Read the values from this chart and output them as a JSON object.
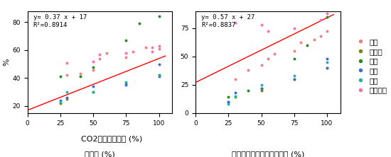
{
  "title1": "y= 0.37 x + 17\nR²=0.8914",
  "title2": "y= 0.57 x + 27\nR²=0.8837",
  "xlabel": "CO2排出量削減率 (%)",
  "ylabel1": "電化率 (%)",
  "ylabel2": "低炭素エネルギー源シェア (%)",
  "ylabel_shared": "%",
  "countries": [
    "中国",
    "インド",
    "日本",
    "韓国",
    "タイ",
    "ベトナム"
  ],
  "colors": [
    "#f08080",
    "#808000",
    "#228B22",
    "#4169e1",
    "#20b2aa",
    "#ff69b4"
  ],
  "plot1": {
    "中国": [
      [
        30,
        42
      ],
      [
        40,
        43
      ],
      [
        50,
        46
      ],
      [
        55,
        54
      ],
      [
        60,
        58
      ],
      [
        75,
        55
      ],
      [
        80,
        59
      ],
      [
        90,
        62
      ],
      [
        95,
        62
      ],
      [
        100,
        61
      ]
    ],
    "インド": [
      [
        25,
        22
      ],
      [
        30,
        25
      ],
      [
        50,
        30
      ],
      [
        75,
        36
      ],
      [
        100,
        42
      ]
    ],
    "日本": [
      [
        25,
        41
      ],
      [
        40,
        41
      ],
      [
        50,
        48
      ],
      [
        75,
        67
      ],
      [
        85,
        79
      ],
      [
        100,
        84
      ]
    ],
    "韓国": [
      [
        25,
        24
      ],
      [
        30,
        26
      ],
      [
        50,
        34
      ],
      [
        75,
        35
      ],
      [
        100,
        41
      ],
      [
        100,
        50
      ]
    ],
    "タイ": [
      [
        25,
        23
      ],
      [
        30,
        30
      ],
      [
        50,
        30
      ],
      [
        75,
        37
      ],
      [
        100,
        42
      ]
    ],
    "ベトナム": [
      [
        30,
        51
      ],
      [
        50,
        52
      ],
      [
        55,
        57
      ],
      [
        75,
        58
      ],
      [
        95,
        59
      ],
      [
        100,
        63
      ]
    ]
  },
  "plot2": {
    "中国": [
      [
        30,
        30
      ],
      [
        40,
        38
      ],
      [
        50,
        42
      ],
      [
        55,
        48
      ],
      [
        60,
        52
      ],
      [
        75,
        55
      ],
      [
        80,
        62
      ],
      [
        90,
        65
      ],
      [
        95,
        68
      ],
      [
        100,
        72
      ]
    ],
    "インド": [
      [
        25,
        10
      ],
      [
        30,
        14
      ],
      [
        50,
        20
      ],
      [
        75,
        30
      ],
      [
        100,
        40
      ]
    ],
    "日本": [
      [
        25,
        14
      ],
      [
        40,
        20
      ],
      [
        50,
        22
      ],
      [
        75,
        48
      ],
      [
        85,
        60
      ],
      [
        100,
        85
      ]
    ],
    "韓国": [
      [
        25,
        10
      ],
      [
        30,
        18
      ],
      [
        50,
        22
      ],
      [
        75,
        30
      ],
      [
        100,
        40
      ],
      [
        100,
        48
      ]
    ],
    "タイ": [
      [
        25,
        8
      ],
      [
        30,
        15
      ],
      [
        50,
        25
      ],
      [
        75,
        33
      ],
      [
        100,
        45
      ]
    ],
    "ベトナム": [
      [
        30,
        80
      ],
      [
        50,
        78
      ],
      [
        55,
        72
      ],
      [
        75,
        75
      ],
      [
        95,
        82
      ],
      [
        100,
        88
      ]
    ]
  },
  "line1": {
    "slope": 0.37,
    "intercept": 17
  },
  "line2": {
    "slope": 0.57,
    "intercept": 27
  },
  "xlim": [
    0,
    110
  ],
  "ylim1": [
    15,
    88
  ],
  "ylim2": [
    0,
    90
  ],
  "xticks": [
    0,
    25,
    50,
    75,
    100
  ],
  "yticks1": [
    20,
    40,
    60,
    80
  ],
  "yticks2": [
    0,
    25,
    50,
    75
  ]
}
